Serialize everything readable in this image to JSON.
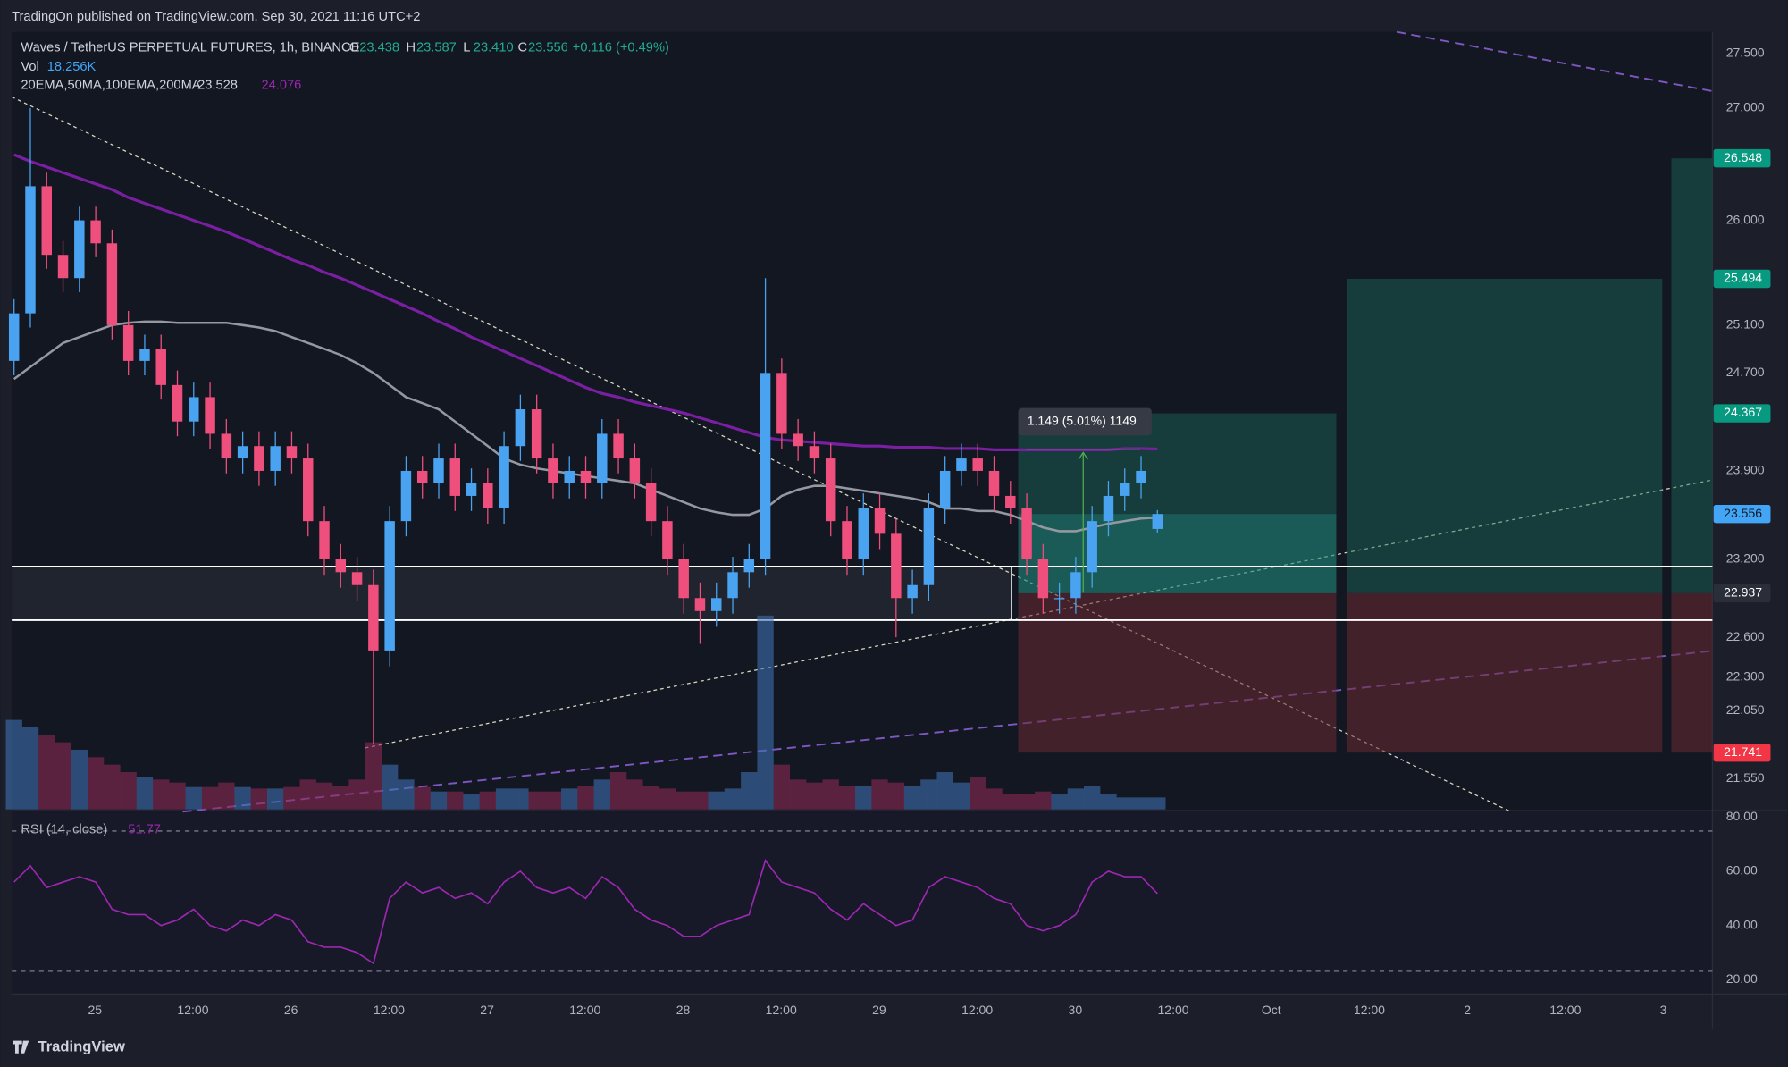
{
  "header": {
    "publisher": "TradingOn published on TradingView.com, Sep 30, 2021 11:16 UTC+2"
  },
  "footer": {
    "brand": "TradingView"
  },
  "chart_data": {
    "type": "candlestick",
    "symbol": "Waves / TetherUS PERPETUAL FUTURES, 1h, BINANCE",
    "legend": [
      {
        "key": "O",
        "value": 23.438
      },
      {
        "key": "H",
        "value": 23.587
      },
      {
        "key": "L",
        "value": {
          "value": 23.41,
          "label": "23.410"
        }
      },
      {
        "key": "C",
        "value": 23.556
      }
    ],
    "change": "+0.116 (+0.49%)",
    "volume_label": "Vol",
    "volume_value": "18.256K",
    "indicators": "20EMA,50MA,100EMA,200MA",
    "ma50_last": 23.528,
    "ma200_last": 24.076,
    "log": true,
    "ylim": [
      21.33,
      27.7
    ],
    "yticks": [
      {
        "value": 27.5,
        "label": "27.500"
      },
      {
        "value": 27.0,
        "label": "27.000"
      },
      {
        "value": 26.0,
        "label": "26.000"
      },
      {
        "value": 25.1,
        "label": "25.100"
      },
      {
        "value": 24.7,
        "label": "24.700"
      },
      {
        "value": 23.9,
        "label": "23.900"
      },
      {
        "value": 23.2,
        "label": "23.200"
      },
      {
        "value": 22.6,
        "label": "22.600"
      },
      {
        "value": 22.3,
        "label": "22.300"
      },
      {
        "value": 22.05,
        "label": "22.050"
      },
      {
        "value": 21.55,
        "label": "21.550"
      }
    ],
    "xticks": [
      "25",
      "12:00",
      "26",
      "12:00",
      "27",
      "12:00",
      "28",
      "12:00",
      "29",
      "12:00",
      "30",
      "12:00",
      "Oct",
      "12:00",
      "2",
      "12:00",
      "3"
    ],
    "open": [
      24.8,
      25.2,
      26.3,
      25.7,
      25.5,
      26.0,
      25.8,
      25.1,
      24.8,
      24.9,
      24.6,
      24.3,
      24.5,
      24.2,
      24.0,
      24.1,
      23.9,
      24.1,
      24.0,
      23.5,
      23.2,
      23.1,
      23.0,
      22.5,
      23.5,
      23.9,
      23.8,
      24.0,
      23.7,
      23.8,
      23.6,
      24.1,
      24.4,
      24.0,
      23.8,
      23.9,
      23.8,
      24.2,
      24.0,
      23.8,
      23.5,
      23.2,
      22.9,
      22.8,
      22.9,
      23.1,
      23.2,
      24.7,
      24.2,
      24.1,
      24.0,
      23.5,
      23.2,
      23.6,
      23.4,
      22.9,
      23.0,
      23.6,
      23.9,
      24.0,
      23.9,
      23.7,
      23.6,
      23.2,
      22.9,
      22.9,
      23.1,
      23.5,
      23.7,
      23.8,
      23.438
    ],
    "high": [
      25.32,
      27.0,
      26.42,
      25.82,
      26.12,
      26.12,
      25.92,
      25.22,
      25.02,
      25.02,
      24.72,
      24.62,
      24.62,
      24.32,
      24.22,
      24.22,
      24.22,
      24.22,
      24.12,
      23.62,
      23.32,
      23.22,
      23.12,
      23.62,
      24.02,
      24.02,
      24.12,
      24.12,
      23.92,
      23.92,
      24.22,
      24.52,
      24.52,
      24.12,
      24.02,
      24.02,
      24.32,
      24.32,
      24.12,
      23.92,
      23.62,
      23.32,
      23.02,
      23.02,
      23.22,
      23.32,
      25.5,
      24.82,
      24.32,
      24.22,
      24.12,
      23.62,
      23.72,
      23.72,
      23.52,
      23.12,
      23.72,
      24.02,
      24.12,
      24.12,
      24.02,
      23.82,
      23.72,
      23.32,
      23.02,
      23.22,
      23.62,
      23.82,
      23.92,
      24.02,
      23.587
    ],
    "low": [
      24.68,
      25.08,
      25.58,
      25.38,
      25.38,
      25.68,
      24.98,
      24.68,
      24.68,
      24.48,
      24.18,
      24.18,
      24.08,
      23.88,
      23.88,
      23.78,
      23.78,
      23.88,
      23.38,
      23.08,
      22.98,
      22.88,
      21.8,
      22.38,
      23.38,
      23.68,
      23.68,
      23.58,
      23.58,
      23.48,
      23.48,
      23.98,
      23.88,
      23.68,
      23.68,
      23.68,
      23.68,
      23.88,
      23.68,
      23.38,
      23.08,
      22.78,
      22.55,
      22.68,
      22.78,
      22.98,
      23.08,
      24.08,
      23.98,
      23.88,
      23.38,
      23.08,
      23.08,
      23.28,
      22.6,
      22.78,
      22.88,
      23.48,
      23.78,
      23.78,
      23.58,
      23.48,
      23.08,
      22.78,
      22.78,
      22.78,
      22.98,
      23.38,
      23.58,
      23.68,
      23.41
    ],
    "close": [
      25.2,
      26.3,
      25.7,
      25.5,
      26.0,
      25.8,
      25.1,
      24.8,
      24.9,
      24.6,
      24.3,
      24.5,
      24.2,
      24.0,
      24.1,
      23.9,
      24.1,
      24.0,
      23.5,
      23.2,
      23.1,
      23.0,
      22.5,
      23.5,
      23.9,
      23.8,
      24.0,
      23.7,
      23.8,
      23.6,
      24.1,
      24.4,
      24.0,
      23.8,
      23.9,
      23.8,
      24.2,
      24.0,
      23.8,
      23.5,
      23.2,
      22.9,
      22.8,
      22.9,
      23.1,
      23.2,
      24.7,
      24.2,
      24.1,
      24.0,
      23.5,
      23.2,
      23.6,
      23.4,
      22.9,
      23.0,
      23.6,
      23.9,
      24.0,
      23.9,
      23.7,
      23.6,
      23.2,
      22.9,
      22.9,
      23.1,
      23.5,
      23.7,
      23.8,
      23.9,
      23.556
    ],
    "volume": [
      60,
      55,
      50,
      45,
      40,
      35,
      30,
      25,
      22,
      20,
      18,
      15,
      15,
      18,
      15,
      14,
      14,
      15,
      20,
      18,
      16,
      20,
      45,
      30,
      20,
      15,
      12,
      12,
      10,
      12,
      14,
      14,
      12,
      12,
      14,
      16,
      20,
      25,
      20,
      16,
      14,
      12,
      12,
      12,
      14,
      25,
      130,
      30,
      20,
      18,
      20,
      16,
      16,
      20,
      18,
      16,
      20,
      25,
      18,
      22,
      14,
      10,
      10,
      12,
      10,
      14,
      16,
      10,
      8,
      8,
      8
    ],
    "ma50": [
      24.65,
      24.75,
      24.85,
      24.95,
      25.0,
      25.05,
      25.1,
      25.12,
      25.13,
      25.13,
      25.12,
      25.12,
      25.12,
      25.12,
      25.1,
      25.08,
      25.05,
      25.0,
      24.95,
      24.9,
      24.85,
      24.78,
      24.7,
      24.6,
      24.5,
      24.45,
      24.4,
      24.3,
      24.2,
      24.1,
      24.0,
      23.95,
      23.92,
      23.9,
      23.88,
      23.86,
      23.84,
      23.82,
      23.8,
      23.75,
      23.7,
      23.65,
      23.6,
      23.57,
      23.55,
      23.55,
      23.6,
      23.7,
      23.75,
      23.78,
      23.78,
      23.76,
      23.74,
      23.72,
      23.7,
      23.68,
      23.65,
      23.6,
      23.6,
      23.58,
      23.58,
      23.55,
      23.5,
      23.45,
      23.42,
      23.42,
      23.45,
      23.48,
      23.5,
      23.52,
      23.528
    ],
    "ma200": [
      26.58,
      26.52,
      26.47,
      26.42,
      26.37,
      26.32,
      26.27,
      26.2,
      26.15,
      26.1,
      26.05,
      26.0,
      25.95,
      25.9,
      25.84,
      25.78,
      25.72,
      25.66,
      25.61,
      25.55,
      25.5,
      25.44,
      25.38,
      25.32,
      25.26,
      25.2,
      25.13,
      25.07,
      25.0,
      24.94,
      24.88,
      24.82,
      24.76,
      24.7,
      24.64,
      24.58,
      24.53,
      24.5,
      24.46,
      24.43,
      24.4,
      24.37,
      24.33,
      24.29,
      24.25,
      24.21,
      24.17,
      24.15,
      24.14,
      24.13,
      24.12,
      24.11,
      24.1,
      24.1,
      24.09,
      24.09,
      24.09,
      24.08,
      24.08,
      24.08,
      24.07,
      24.07,
      24.07,
      24.07,
      24.07,
      24.07,
      24.07,
      24.07,
      24.08,
      24.08,
      24.076
    ],
    "levels": {
      "targets": [
        {
          "value": 26.548,
          "label": "26.548"
        },
        {
          "value": 25.494,
          "label": "25.494"
        },
        {
          "value": 24.367,
          "label": "24.367"
        }
      ],
      "last": {
        "value": 23.556,
        "label": "23.556"
      },
      "entry": {
        "value": 22.937,
        "label": "22.937"
      },
      "stop": {
        "value": 21.741,
        "label": "21.741"
      }
    },
    "measure": "1.149 (5.01%) 1149",
    "rsi": {
      "title": "RSI (14, close)",
      "ylim": [
        14.7,
        82
      ],
      "yticks": [
        {
          "value": 80,
          "label": "80.00"
        },
        {
          "value": 60,
          "label": "60.00"
        },
        {
          "value": 40,
          "label": "40.00"
        },
        {
          "value": 20,
          "label": "20.00"
        }
      ],
      "values": [
        56,
        62,
        54,
        56,
        58,
        56,
        46,
        44,
        44,
        40,
        42,
        46,
        40,
        38,
        42,
        40,
        44,
        42,
        34,
        32,
        32,
        30,
        26,
        50,
        56,
        52,
        54,
        50,
        52,
        48,
        56,
        60,
        54,
        52,
        54,
        50,
        58,
        54,
        46,
        42,
        40,
        36,
        36,
        40,
        42,
        44,
        64,
        56,
        54,
        52,
        46,
        42,
        48,
        44,
        40,
        42,
        54,
        58,
        56,
        54,
        50,
        48,
        40,
        38,
        40,
        44,
        56,
        60,
        58,
        58,
        51.77
      ]
    }
  }
}
